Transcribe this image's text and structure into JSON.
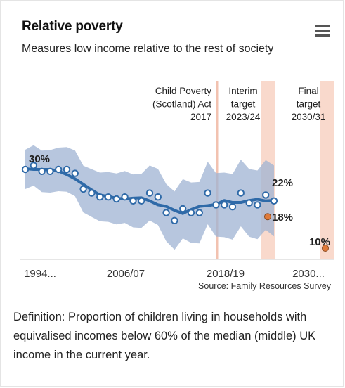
{
  "title": "Relative poverty",
  "subtitle": "Measures low income relative to the rest of society",
  "menu_icon": "hamburger-menu-icon",
  "source": "Source: Family Resources Survey",
  "definition": "Definition: Proportion of children living in households with equivalised incomes below 60% of the median (middle) UK income in the current year.",
  "colors": {
    "line": "#2f6aa8",
    "band": "#9fb3d3",
    "point_fill": "#ffffff",
    "target_point": "#e07a3a",
    "target_band": "#f9d9cc",
    "annotation_line": "#f2c2b0"
  },
  "chart_data": {
    "type": "line",
    "title": "Relative poverty",
    "subtitle": "Measures low income relative to the rest of society",
    "x_tick_labels": [
      "1994...",
      "2006/07",
      "2018/19",
      "2030..."
    ],
    "annotations": [
      {
        "label_lines": [
          "Child Poverty",
          "(Scotland) Act",
          "2017"
        ]
      },
      {
        "label_lines": [
          "Interim",
          "target",
          "2023/24"
        ]
      },
      {
        "label_lines": [
          "Final",
          "target",
          "2030/31"
        ]
      }
    ],
    "series": [
      {
        "values": [
          30,
          31,
          29.5,
          29.5,
          30,
          30,
          29,
          25,
          24,
          23,
          23,
          22.5,
          23,
          22,
          22,
          24,
          23,
          19,
          17,
          20,
          19,
          19,
          24,
          21,
          21,
          20.5,
          24,
          21.5,
          21,
          23.5,
          22
        ]
      }
    ],
    "uncertainty_band": true,
    "data_labels": [
      {
        "text": "30%",
        "value": 30
      },
      {
        "text": "22%",
        "value": 22
      },
      {
        "text": "18%",
        "value": 18
      },
      {
        "text": "10%",
        "value": 10
      }
    ],
    "targets": [
      {
        "name": "Interim target",
        "value": 18
      },
      {
        "name": "Final target",
        "value": 10
      }
    ]
  }
}
